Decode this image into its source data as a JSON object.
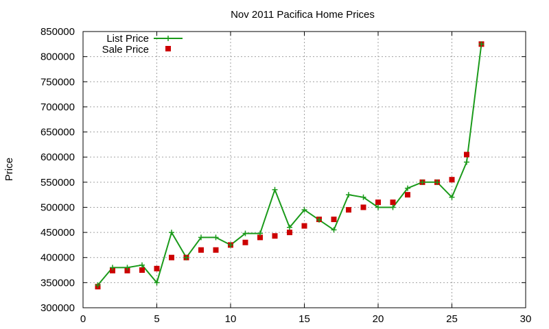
{
  "chart_data": {
    "type": "line",
    "title": "Nov 2011 Pacifica Home Prices",
    "xlabel": "",
    "ylabel": "Price",
    "xlim": [
      0,
      30
    ],
    "ylim": [
      300000,
      850000
    ],
    "xticks": [
      0,
      5,
      10,
      15,
      20,
      25,
      30
    ],
    "yticks": [
      300000,
      350000,
      400000,
      450000,
      500000,
      550000,
      600000,
      650000,
      700000,
      750000,
      800000,
      850000
    ],
    "grid": true,
    "legend_position": "top-left",
    "series": [
      {
        "name": "List Price",
        "style": "line-with-plus-markers",
        "color": "#1a9a1a",
        "x": [
          1,
          2,
          3,
          4,
          5,
          6,
          7,
          8,
          9,
          10,
          11,
          12,
          13,
          14,
          15,
          16,
          17,
          18,
          19,
          20,
          21,
          22,
          23,
          24,
          25,
          26,
          27
        ],
        "y": [
          345000,
          380000,
          380000,
          385000,
          350000,
          450000,
          400000,
          440000,
          440000,
          425000,
          448000,
          448000,
          535000,
          460000,
          495000,
          475000,
          455000,
          525000,
          520000,
          500000,
          500000,
          538000,
          550000,
          550000,
          520000,
          590000,
          825000
        ]
      },
      {
        "name": "Sale Price",
        "style": "square-markers",
        "color": "#cc0000",
        "x": [
          1,
          2,
          3,
          4,
          5,
          6,
          7,
          8,
          9,
          10,
          11,
          12,
          13,
          14,
          15,
          16,
          17,
          18,
          19,
          20,
          21,
          22,
          23,
          24,
          25,
          26,
          27
        ],
        "y": [
          342000,
          374000,
          374000,
          375000,
          378000,
          400000,
          400000,
          415000,
          415000,
          425000,
          430000,
          440000,
          443000,
          450000,
          463000,
          476000,
          476000,
          495000,
          500000,
          510000,
          510000,
          525000,
          550000,
          550000,
          555000,
          605000,
          825000
        ]
      }
    ]
  }
}
